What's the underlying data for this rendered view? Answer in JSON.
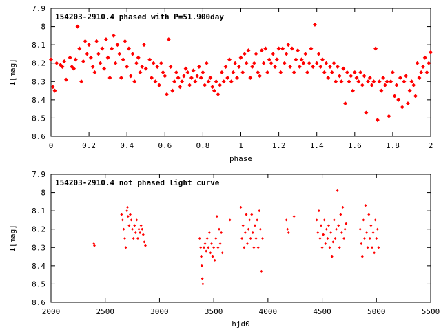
{
  "chart_data": [
    {
      "type": "scatter",
      "title": "154203-2910.4 phased with P=51.900day",
      "xlabel": "phase",
      "ylabel": "I[mag]",
      "xlim": [
        0,
        2
      ],
      "ylim": [
        7.9,
        8.6
      ],
      "y_inverted": true,
      "x_ticks": [
        0,
        0.2,
        0.4,
        0.6,
        0.8,
        1,
        1.2,
        1.4,
        1.6,
        1.8,
        2
      ],
      "y_ticks": [
        7.9,
        8,
        8.1,
        8.2,
        8.3,
        8.4,
        8.5,
        8.6
      ],
      "marker_color": "#ff0000",
      "grid": false,
      "points": [
        [
          0.0,
          8.18
        ],
        [
          0.01,
          8.33
        ],
        [
          0.02,
          8.35
        ],
        [
          0.03,
          8.2
        ],
        [
          0.05,
          8.21
        ],
        [
          0.06,
          8.22
        ],
        [
          0.07,
          8.19
        ],
        [
          0.08,
          8.29
        ],
        [
          0.1,
          8.17
        ],
        [
          0.11,
          8.22
        ],
        [
          0.12,
          8.23
        ],
        [
          0.13,
          8.18
        ],
        [
          0.14,
          8.0
        ],
        [
          0.15,
          8.12
        ],
        [
          0.16,
          8.3
        ],
        [
          0.17,
          8.19
        ],
        [
          0.18,
          8.08
        ],
        [
          0.19,
          8.15
        ],
        [
          0.2,
          8.1
        ],
        [
          0.21,
          8.17
        ],
        [
          0.22,
          8.22
        ],
        [
          0.23,
          8.25
        ],
        [
          0.24,
          8.08
        ],
        [
          0.25,
          8.15
        ],
        [
          0.26,
          8.2
        ],
        [
          0.27,
          8.12
        ],
        [
          0.28,
          8.23
        ],
        [
          0.29,
          8.07
        ],
        [
          0.3,
          8.17
        ],
        [
          0.31,
          8.28
        ],
        [
          0.32,
          8.12
        ],
        [
          0.33,
          8.05
        ],
        [
          0.34,
          8.2
        ],
        [
          0.35,
          8.1
        ],
        [
          0.36,
          8.15
        ],
        [
          0.37,
          8.28
        ],
        [
          0.38,
          8.18
        ],
        [
          0.39,
          8.08
        ],
        [
          0.4,
          8.22
        ],
        [
          0.41,
          8.12
        ],
        [
          0.42,
          8.27
        ],
        [
          0.43,
          8.15
        ],
        [
          0.44,
          8.3
        ],
        [
          0.45,
          8.2
        ],
        [
          0.46,
          8.17
        ],
        [
          0.47,
          8.25
        ],
        [
          0.48,
          8.22
        ],
        [
          0.49,
          8.1
        ],
        [
          0.5,
          8.23
        ],
        [
          0.52,
          8.18
        ],
        [
          0.53,
          8.28
        ],
        [
          0.54,
          8.2
        ],
        [
          0.55,
          8.3
        ],
        [
          0.56,
          8.22
        ],
        [
          0.57,
          8.32
        ],
        [
          0.58,
          8.2
        ],
        [
          0.59,
          8.25
        ],
        [
          0.6,
          8.27
        ],
        [
          0.61,
          8.37
        ],
        [
          0.62,
          8.07
        ],
        [
          0.63,
          8.22
        ],
        [
          0.64,
          8.35
        ],
        [
          0.65,
          8.3
        ],
        [
          0.66,
          8.25
        ],
        [
          0.67,
          8.28
        ],
        [
          0.68,
          8.33
        ],
        [
          0.69,
          8.3
        ],
        [
          0.7,
          8.27
        ],
        [
          0.71,
          8.23
        ],
        [
          0.72,
          8.25
        ],
        [
          0.73,
          8.32
        ],
        [
          0.74,
          8.28
        ],
        [
          0.75,
          8.24
        ],
        [
          0.76,
          8.3
        ],
        [
          0.77,
          8.27
        ],
        [
          0.78,
          8.22
        ],
        [
          0.79,
          8.28
        ],
        [
          0.8,
          8.25
        ],
        [
          0.81,
          8.32
        ],
        [
          0.82,
          8.2
        ],
        [
          0.83,
          8.3
        ],
        [
          0.84,
          8.28
        ],
        [
          0.85,
          8.33
        ],
        [
          0.86,
          8.35
        ],
        [
          0.87,
          8.3
        ],
        [
          0.88,
          8.37
        ],
        [
          0.89,
          8.32
        ],
        [
          0.9,
          8.25
        ],
        [
          0.91,
          8.3
        ],
        [
          0.92,
          8.22
        ],
        [
          0.93,
          8.28
        ],
        [
          0.94,
          8.18
        ],
        [
          0.95,
          8.3
        ],
        [
          0.96,
          8.25
        ],
        [
          0.97,
          8.2
        ],
        [
          0.98,
          8.28
        ],
        [
          0.99,
          8.22
        ],
        [
          1.0,
          8.17
        ],
        [
          1.01,
          8.25
        ],
        [
          1.02,
          8.15
        ],
        [
          1.03,
          8.2
        ],
        [
          1.04,
          8.13
        ],
        [
          1.05,
          8.28
        ],
        [
          1.06,
          8.22
        ],
        [
          1.07,
          8.2
        ],
        [
          1.08,
          8.15
        ],
        [
          1.09,
          8.25
        ],
        [
          1.1,
          8.27
        ],
        [
          1.11,
          8.13
        ],
        [
          1.12,
          8.2
        ],
        [
          1.13,
          8.12
        ],
        [
          1.14,
          8.25
        ],
        [
          1.15,
          8.18
        ],
        [
          1.16,
          8.2
        ],
        [
          1.17,
          8.15
        ],
        [
          1.18,
          8.22
        ],
        [
          1.19,
          8.18
        ],
        [
          1.2,
          8.12
        ],
        [
          1.21,
          8.25
        ],
        [
          1.22,
          8.12
        ],
        [
          1.23,
          8.2
        ],
        [
          1.24,
          8.15
        ],
        [
          1.25,
          8.1
        ],
        [
          1.26,
          8.22
        ],
        [
          1.27,
          8.12
        ],
        [
          1.28,
          8.25
        ],
        [
          1.29,
          8.18
        ],
        [
          1.3,
          8.13
        ],
        [
          1.31,
          8.22
        ],
        [
          1.32,
          8.18
        ],
        [
          1.33,
          8.2
        ],
        [
          1.34,
          8.15
        ],
        [
          1.35,
          8.25
        ],
        [
          1.36,
          8.2
        ],
        [
          1.37,
          8.12
        ],
        [
          1.38,
          8.22
        ],
        [
          1.39,
          7.99
        ],
        [
          1.4,
          8.2
        ],
        [
          1.41,
          8.15
        ],
        [
          1.42,
          8.22
        ],
        [
          1.43,
          8.18
        ],
        [
          1.44,
          8.25
        ],
        [
          1.45,
          8.2
        ],
        [
          1.46,
          8.28
        ],
        [
          1.47,
          8.22
        ],
        [
          1.48,
          8.25
        ],
        [
          1.49,
          8.2
        ],
        [
          1.5,
          8.3
        ],
        [
          1.51,
          8.22
        ],
        [
          1.52,
          8.27
        ],
        [
          1.53,
          8.3
        ],
        [
          1.54,
          8.23
        ],
        [
          1.55,
          8.42
        ],
        [
          1.56,
          8.25
        ],
        [
          1.57,
          8.3
        ],
        [
          1.58,
          8.27
        ],
        [
          1.59,
          8.35
        ],
        [
          1.6,
          8.25
        ],
        [
          1.61,
          8.28
        ],
        [
          1.62,
          8.3
        ],
        [
          1.63,
          8.25
        ],
        [
          1.64,
          8.32
        ],
        [
          1.65,
          8.27
        ],
        [
          1.66,
          8.47
        ],
        [
          1.67,
          8.3
        ],
        [
          1.68,
          8.28
        ],
        [
          1.69,
          8.32
        ],
        [
          1.7,
          8.3
        ],
        [
          1.71,
          8.12
        ],
        [
          1.72,
          8.51
        ],
        [
          1.73,
          8.3
        ],
        [
          1.74,
          8.35
        ],
        [
          1.75,
          8.28
        ],
        [
          1.76,
          8.32
        ],
        [
          1.77,
          8.3
        ],
        [
          1.78,
          8.49
        ],
        [
          1.79,
          8.3
        ],
        [
          1.8,
          8.25
        ],
        [
          1.81,
          8.38
        ],
        [
          1.82,
          8.32
        ],
        [
          1.83,
          8.4
        ],
        [
          1.84,
          8.28
        ],
        [
          1.85,
          8.44
        ],
        [
          1.86,
          8.3
        ],
        [
          1.87,
          8.27
        ],
        [
          1.88,
          8.42
        ],
        [
          1.89,
          8.35
        ],
        [
          1.9,
          8.3
        ],
        [
          1.91,
          8.32
        ],
        [
          1.92,
          8.38
        ],
        [
          1.93,
          8.2
        ],
        [
          1.94,
          8.28
        ],
        [
          1.95,
          8.25
        ],
        [
          1.96,
          8.22
        ],
        [
          1.97,
          8.17
        ],
        [
          1.98,
          8.25
        ],
        [
          1.99,
          8.2
        ],
        [
          2.0,
          8.14
        ]
      ]
    },
    {
      "type": "scatter",
      "title": "154203-2910.4 not phased light curve",
      "xlabel": "hjd0",
      "ylabel": "I[mag]",
      "xlim": [
        2000,
        5500
      ],
      "ylim": [
        7.9,
        8.6
      ],
      "y_inverted": true,
      "x_ticks": [
        2000,
        2500,
        3000,
        3500,
        4000,
        4500,
        5000,
        5500
      ],
      "y_ticks": [
        7.9,
        8,
        8.1,
        8.2,
        8.3,
        8.4,
        8.5,
        8.6
      ],
      "marker_color": "#ff0000",
      "grid": false,
      "points": [
        [
          2395,
          8.28
        ],
        [
          2400,
          8.29
        ],
        [
          2650,
          8.12
        ],
        [
          2660,
          8.15
        ],
        [
          2670,
          8.2
        ],
        [
          2680,
          8.25
        ],
        [
          2690,
          8.3
        ],
        [
          2700,
          8.1
        ],
        [
          2705,
          8.08
        ],
        [
          2710,
          8.13
        ],
        [
          2720,
          8.18
        ],
        [
          2730,
          8.12
        ],
        [
          2740,
          8.15
        ],
        [
          2750,
          8.2
        ],
        [
          2760,
          8.25
        ],
        [
          2770,
          8.18
        ],
        [
          2780,
          8.22
        ],
        [
          2790,
          8.15
        ],
        [
          2800,
          8.25
        ],
        [
          2810,
          8.2
        ],
        [
          2820,
          8.22
        ],
        [
          2830,
          8.18
        ],
        [
          2840,
          8.2
        ],
        [
          2850,
          8.23
        ],
        [
          2860,
          8.27
        ],
        [
          2870,
          8.29
        ],
        [
          3370,
          8.25
        ],
        [
          3380,
          8.3
        ],
        [
          3385,
          8.35
        ],
        [
          3390,
          8.4
        ],
        [
          3395,
          8.47
        ],
        [
          3400,
          8.5
        ],
        [
          3410,
          8.3
        ],
        [
          3420,
          8.28
        ],
        [
          3430,
          8.32
        ],
        [
          3440,
          8.25
        ],
        [
          3450,
          8.3
        ],
        [
          3460,
          8.22
        ],
        [
          3470,
          8.33
        ],
        [
          3480,
          8.28
        ],
        [
          3490,
          8.35
        ],
        [
          3500,
          8.3
        ],
        [
          3510,
          8.37
        ],
        [
          3520,
          8.25
        ],
        [
          3530,
          8.13
        ],
        [
          3540,
          8.3
        ],
        [
          3550,
          8.2
        ],
        [
          3560,
          8.28
        ],
        [
          3570,
          8.22
        ],
        [
          3580,
          8.33
        ],
        [
          3650,
          8.15
        ],
        [
          3750,
          8.08
        ],
        [
          3760,
          8.25
        ],
        [
          3770,
          8.18
        ],
        [
          3780,
          8.3
        ],
        [
          3790,
          8.22
        ],
        [
          3800,
          8.12
        ],
        [
          3810,
          8.28
        ],
        [
          3820,
          8.2
        ],
        [
          3830,
          8.15
        ],
        [
          3840,
          8.25
        ],
        [
          3850,
          8.12
        ],
        [
          3860,
          8.22
        ],
        [
          3870,
          8.3
        ],
        [
          3880,
          8.18
        ],
        [
          3890,
          8.25
        ],
        [
          3900,
          8.15
        ],
        [
          3910,
          8.3
        ],
        [
          3920,
          8.1
        ],
        [
          3930,
          8.2
        ],
        [
          3940,
          8.43
        ],
        [
          3950,
          8.25
        ],
        [
          4170,
          8.15
        ],
        [
          4180,
          8.2
        ],
        [
          4190,
          8.22
        ],
        [
          4240,
          8.13
        ],
        [
          4450,
          8.15
        ],
        [
          4460,
          8.22
        ],
        [
          4470,
          8.1
        ],
        [
          4480,
          8.25
        ],
        [
          4490,
          8.18
        ],
        [
          4500,
          8.3
        ],
        [
          4510,
          8.23
        ],
        [
          4520,
          8.15
        ],
        [
          4530,
          8.28
        ],
        [
          4540,
          8.2
        ],
        [
          4550,
          8.25
        ],
        [
          4560,
          8.18
        ],
        [
          4570,
          8.3
        ],
        [
          4580,
          8.22
        ],
        [
          4590,
          8.35
        ],
        [
          4600,
          8.27
        ],
        [
          4610,
          8.15
        ],
        [
          4620,
          8.25
        ],
        [
          4630,
          8.2
        ],
        [
          4640,
          7.99
        ],
        [
          4650,
          8.18
        ],
        [
          4660,
          8.3
        ],
        [
          4670,
          8.12
        ],
        [
          4680,
          8.22
        ],
        [
          4690,
          8.08
        ],
        [
          4700,
          8.25
        ],
        [
          4710,
          8.2
        ],
        [
          4720,
          8.17
        ],
        [
          4850,
          8.2
        ],
        [
          4860,
          8.28
        ],
        [
          4870,
          8.35
        ],
        [
          4880,
          8.15
        ],
        [
          4890,
          8.25
        ],
        [
          4900,
          8.07
        ],
        [
          4910,
          8.22
        ],
        [
          4920,
          8.3
        ],
        [
          4930,
          8.12
        ],
        [
          4940,
          8.25
        ],
        [
          4950,
          8.18
        ],
        [
          4960,
          8.3
        ],
        [
          4970,
          8.22
        ],
        [
          4980,
          8.33
        ],
        [
          4990,
          8.15
        ],
        [
          5000,
          8.25
        ],
        [
          5010,
          8.2
        ],
        [
          5020,
          8.3
        ]
      ]
    }
  ]
}
